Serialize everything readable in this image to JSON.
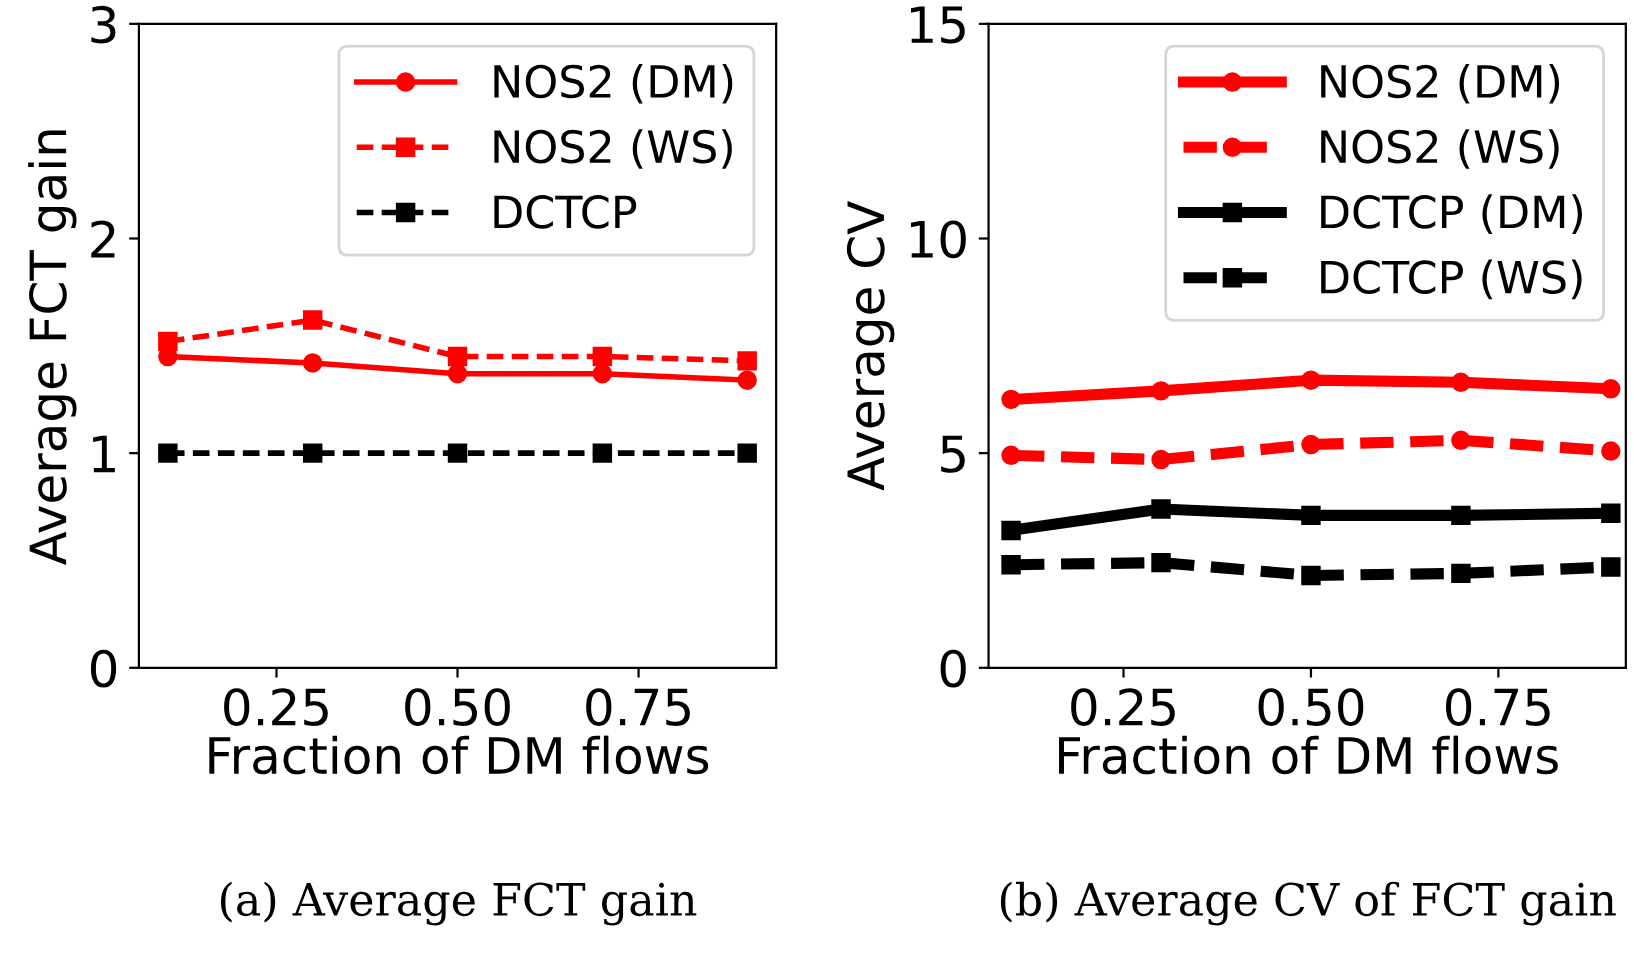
{
  "chart_data": [
    {
      "type": "line",
      "xlabel": "Fraction of DM flows",
      "ylabel": "Average FCT gain",
      "x": [
        0.1,
        0.3,
        0.5,
        0.7,
        0.9
      ],
      "xlim": [
        0.06,
        0.94
      ],
      "xticks": [
        {
          "value": 0.25,
          "label": "0.25"
        },
        {
          "value": 0.5,
          "label": "0.50"
        },
        {
          "value": 0.75,
          "label": "0.75"
        }
      ],
      "ylim": [
        0,
        3
      ],
      "yticks": [
        0,
        1,
        2,
        3
      ],
      "grid": false,
      "legend": "top right",
      "annotations": [
        "(a) Average FCT gain"
      ],
      "series": [
        {
          "name": "NOS2 (DM)",
          "color": "#ff0000",
          "marker": "circle",
          "line_style": "solid",
          "values": [
            1.45,
            1.42,
            1.37,
            1.37,
            1.34
          ]
        },
        {
          "name": "NOS2 (WS)",
          "color": "#ff0000",
          "marker": "square",
          "line_style": "dashed",
          "values": [
            1.52,
            1.62,
            1.45,
            1.45,
            1.43
          ]
        },
        {
          "name": "DCTCP",
          "color": "#000000",
          "marker": "square",
          "line_style": "dashed",
          "values": [
            1.0,
            1.0,
            1.0,
            1.0,
            1.0
          ]
        }
      ]
    },
    {
      "type": "line",
      "xlabel": "Fraction of DM flows",
      "ylabel": "Average CV",
      "x": [
        0.1,
        0.3,
        0.5,
        0.7,
        0.9
      ],
      "xlim": [
        0.07,
        0.92
      ],
      "xticks": [
        {
          "value": 0.25,
          "label": "0.25"
        },
        {
          "value": 0.5,
          "label": "0.50"
        },
        {
          "value": 0.75,
          "label": "0.75"
        }
      ],
      "ylim": [
        0,
        15
      ],
      "yticks": [
        0,
        5,
        10,
        15
      ],
      "grid": false,
      "legend": "top right",
      "annotations": [
        "(b) Average CV of FCT gain"
      ],
      "series": [
        {
          "name": "NOS2 (DM)",
          "color": "#ff0000",
          "marker": "circle",
          "line_style": "solid",
          "values": [
            6.25,
            6.45,
            6.7,
            6.65,
            6.5
          ]
        },
        {
          "name": "NOS2 (WS)",
          "color": "#ff0000",
          "marker": "circle",
          "line_style": "dashed",
          "values": [
            4.95,
            4.85,
            5.2,
            5.3,
            5.05
          ]
        },
        {
          "name": "DCTCP (DM)",
          "color": "#000000",
          "marker": "square",
          "line_style": "solid",
          "values": [
            3.2,
            3.7,
            3.55,
            3.55,
            3.6
          ]
        },
        {
          "name": "DCTCP (WS)",
          "color": "#000000",
          "marker": "square",
          "line_style": "dashed",
          "values": [
            2.4,
            2.45,
            2.15,
            2.2,
            2.35
          ]
        }
      ]
    }
  ]
}
